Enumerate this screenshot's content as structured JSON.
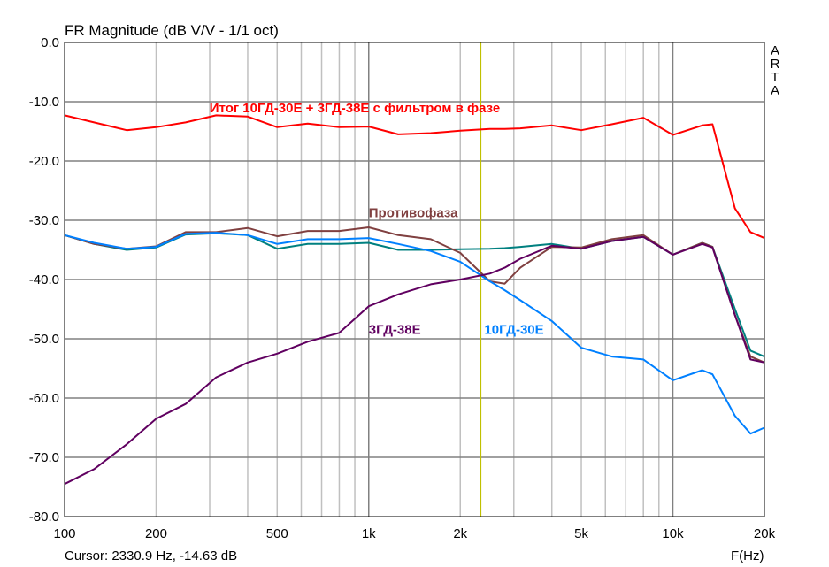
{
  "chart_data": {
    "type": "line",
    "title": "FR Magnitude (dB V/V - 1/1 oct)",
    "xlabel": "F(Hz)",
    "ylabel": "",
    "xscale": "log",
    "xlim": [
      100,
      20000
    ],
    "ylim": [
      -80,
      0
    ],
    "grid": true,
    "watermark": "ARTA",
    "cursor": {
      "freq_hz": 2330.9,
      "text": "Cursor: 2330.9 Hz, -14.63 dB"
    },
    "yticks": [
      "0.0",
      "-10.0",
      "-20.0",
      "-30.0",
      "-40.0",
      "-50.0",
      "-60.0",
      "-70.0",
      "-80.0"
    ],
    "xticks": [
      {
        "v": 100,
        "label": "100"
      },
      {
        "v": 200,
        "label": "200"
      },
      {
        "v": 500,
        "label": "500"
      },
      {
        "v": 1000,
        "label": "1k"
      },
      {
        "v": 2000,
        "label": "2k"
      },
      {
        "v": 5000,
        "label": "5k"
      },
      {
        "v": 10000,
        "label": "10k"
      },
      {
        "v": 20000,
        "label": "20k"
      }
    ],
    "x": [
      100,
      125,
      160,
      200,
      250,
      315,
      400,
      500,
      630,
      800,
      1000,
      1250,
      1600,
      2000,
      2500,
      2800,
      3150,
      4000,
      5000,
      6300,
      8000,
      10000,
      12500,
      13500,
      16000,
      18000,
      20000
    ],
    "series": [
      {
        "name": "Итог 10ГД-30Е + 3ГД-38Е с фильтром в фазе",
        "color": "#ff0000",
        "values": [
          -12.3,
          -13.5,
          -14.8,
          -14.3,
          -13.5,
          -12.3,
          -12.5,
          -14.3,
          -13.7,
          -14.3,
          -14.2,
          -15.5,
          -15.3,
          -14.9,
          -14.6,
          -14.6,
          -14.5,
          -14.0,
          -14.8,
          -13.8,
          -12.7,
          -15.6,
          -14.0,
          -13.8,
          -28.0,
          -32,
          -33
        ]
      },
      {
        "name": "",
        "color": "#008080",
        "values": [
          -32.5,
          -34,
          -35,
          -34.6,
          -32.4,
          -32.2,
          -32.5,
          -34.8,
          -34,
          -34,
          -33.8,
          -35,
          -35,
          -34.9,
          -34.8,
          -34.7,
          -34.5,
          -34,
          -34.8,
          -33.5,
          -32.8,
          -35.8,
          -33.8,
          -34.5,
          -45,
          -52,
          -53
        ]
      },
      {
        "name": "Противофаза",
        "color": "#804040",
        "values": [
          -32.5,
          -34,
          -34.8,
          -34.4,
          -32,
          -32,
          -31.3,
          -32.7,
          -31.8,
          -31.8,
          -31.2,
          -32.5,
          -33.2,
          -35.5,
          -40.3,
          -40.7,
          -38,
          -34.5,
          -34.6,
          -33.2,
          -32.5,
          -35.8,
          -33.8,
          -34.5,
          -46,
          -53,
          -54
        ]
      },
      {
        "name": "10ГД-30Е",
        "color": "#0080ff",
        "values": [
          -32.5,
          -33.8,
          -34.8,
          -34.5,
          -32.3,
          -32.1,
          -32.5,
          -34,
          -33.2,
          -33.2,
          -33.0,
          -34,
          -35.2,
          -37,
          -40.3,
          -41.8,
          -43.5,
          -47,
          -51.5,
          -53,
          -53.5,
          -57,
          -55.3,
          -56,
          -63,
          -66,
          -65
        ]
      },
      {
        "name": "3ГД-38Е",
        "color": "#600060",
        "values": [
          -74.5,
          -72,
          -67.8,
          -63.5,
          -61,
          -56.5,
          -54,
          -52.5,
          -50.5,
          -49,
          -44.5,
          -42.5,
          -40.8,
          -40,
          -39,
          -38,
          -36.5,
          -34.3,
          -34.8,
          -33.5,
          -32.8,
          -35.8,
          -34,
          -34.6,
          -46,
          -53.5,
          -54
        ]
      }
    ],
    "annotations": [
      {
        "text": "Итог 10ГД-30Е + 3ГД-38Е с фильтром в фазе",
        "color": "#ff0000",
        "f": 900,
        "db": -11.8
      },
      {
        "text": "Противофаза",
        "color": "#804040",
        "f": 1000,
        "db": -29.5
      },
      {
        "text": "3ГД-38Е",
        "color": "#600060",
        "f": 1000,
        "db": -49.2
      },
      {
        "text": "10ГД-30Е",
        "color": "#0080ff",
        "f": 2400,
        "db": -49.2
      }
    ]
  }
}
